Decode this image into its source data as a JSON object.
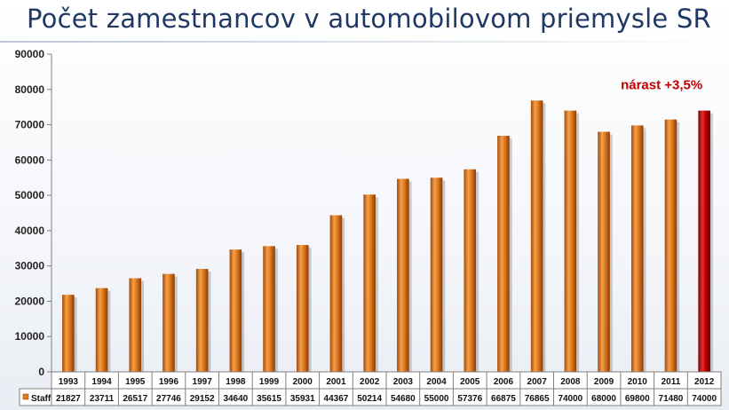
{
  "title": "Počet zamestnancov v automobilovom priemysle SR",
  "chart_data": {
    "type": "bar",
    "categories": [
      "1993",
      "1994",
      "1995",
      "1996",
      "1997",
      "1998",
      "1999",
      "2000",
      "2001",
      "2002",
      "2003",
      "2004",
      "2005",
      "2006",
      "2007",
      "2008",
      "2009",
      "2010",
      "2011",
      "2012"
    ],
    "series": [
      {
        "name": "Staff",
        "values": [
          21827,
          23711,
          26517,
          27746,
          29152,
          34640,
          35615,
          35931,
          44367,
          50214,
          54680,
          55000,
          57376,
          66875,
          76865,
          74000,
          68000,
          69800,
          71480,
          74000
        ]
      }
    ],
    "value_labels": [
      "21827",
      "23711",
      "26517",
      "27746",
      "29152",
      "34640",
      "35615",
      "35931",
      "44367",
      "50214",
      "54680",
      "55000",
      "57376",
      "66875",
      "76865",
      "74000",
      "68000",
      "69800",
      "71480",
      "74000"
    ],
    "ylim": [
      0,
      90000
    ],
    "yticks": [
      0,
      10000,
      20000,
      30000,
      40000,
      50000,
      60000,
      70000,
      80000,
      90000
    ],
    "ytick_labels": [
      "0",
      "10000",
      "20000",
      "30000",
      "40000",
      "50000",
      "60000",
      "70000",
      "80000",
      "90000"
    ],
    "annotation": {
      "text": "nárast +3,5%",
      "category": "2012"
    },
    "highlight_category": "2012",
    "grid": false,
    "legend": "data-table",
    "colors": {
      "bar": "#e07a1f",
      "bar_dark": "#a04a08",
      "highlight": "#c00000",
      "highlight_dark": "#7a0000",
      "title": "#1f3864",
      "annotation": "#c00000"
    }
  }
}
